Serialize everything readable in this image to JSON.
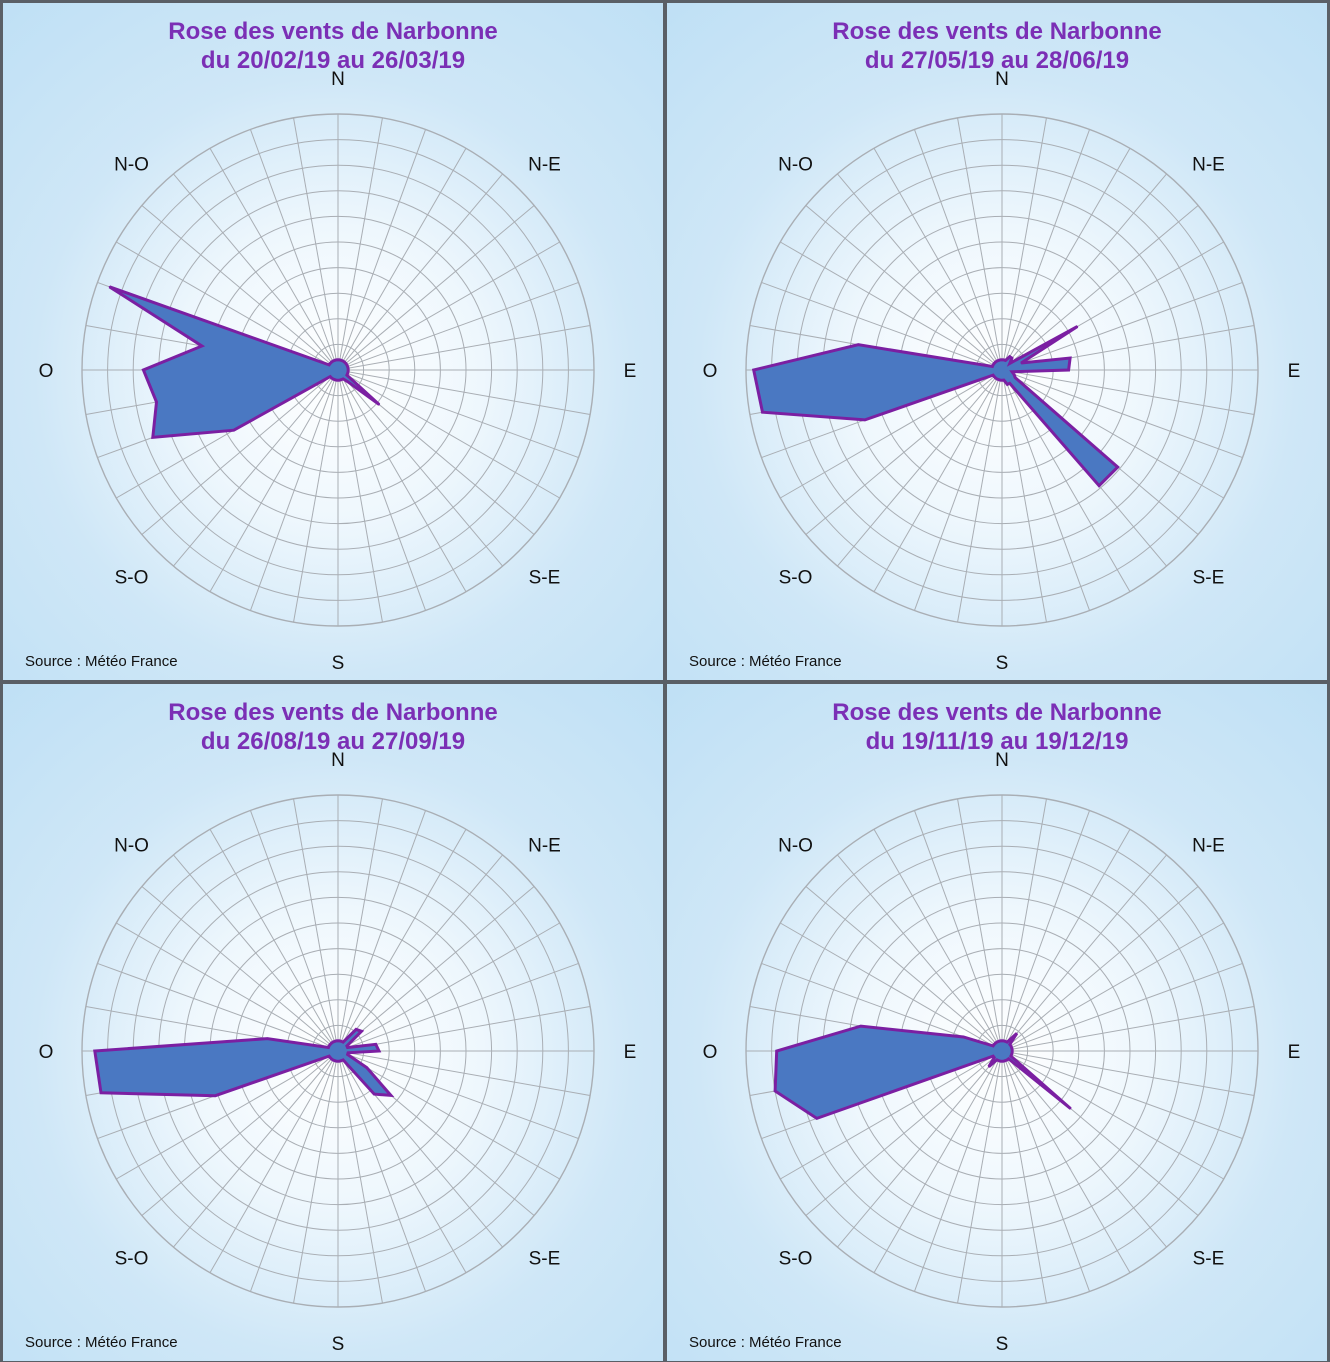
{
  "directions": [
    "N",
    "N-E",
    "E",
    "S-E",
    "S",
    "S-O",
    "O",
    "N-O"
  ],
  "colors": {
    "fill": "#4a78c2",
    "stroke": "#7b1fa2",
    "title": "#7b2fb5",
    "grid": "#a9aeb4"
  },
  "chart_data": [
    {
      "type": "radar",
      "title": "Rose des vents de Narbonne",
      "subtitle": "du 20/02/19 au 26/03/19",
      "source": "Source : Météo France",
      "sectors": 36,
      "rings": 10,
      "grid": true,
      "r_max": 10,
      "values": [
        0.4,
        0.4,
        0.4,
        0.4,
        0.4,
        0.4,
        0.4,
        0.4,
        0.4,
        0.4,
        0.4,
        0.4,
        0.4,
        2.1,
        0.6,
        0.4,
        0.4,
        0.4,
        0.4,
        0.4,
        0.4,
        0.4,
        0.4,
        0.4,
        4.7,
        7.7,
        7.2,
        7.6,
        5.4,
        9.5,
        0.4,
        0.4,
        0.4,
        0.4,
        0.4,
        0.4
      ]
    },
    {
      "type": "radar",
      "title": "Rose des vents de Narbonne",
      "subtitle": "du 27/05/19 au 28/06/19",
      "source": "Source : Météo France",
      "sectors": 36,
      "rings": 10,
      "grid": true,
      "r_max": 10,
      "values": [
        0.4,
        0.4,
        0.4,
        0.6,
        0.6,
        0.4,
        3.4,
        0.8,
        2.7,
        2.6,
        0.4,
        0.5,
        0.6,
        5.9,
        5.9,
        0.6,
        0.6,
        0.4,
        0.4,
        0.4,
        0.4,
        0.4,
        0.4,
        0.4,
        0.4,
        5.7,
        9.5,
        9.7,
        5.7,
        0.4,
        0.4,
        0.4,
        0.4,
        0.4,
        0.4,
        0.4
      ]
    },
    {
      "type": "radar",
      "title": "Rose des vents de Narbonne",
      "subtitle": "du 26/08/19 au 27/09/19",
      "source": "Source : Météo France",
      "sectors": 36,
      "rings": 10,
      "grid": true,
      "r_max": 10,
      "values": [
        0.4,
        0.4,
        0.4,
        0.4,
        1.1,
        1.2,
        0.4,
        0.4,
        1.5,
        1.6,
        0.4,
        0.4,
        1.3,
        2.7,
        2.2,
        0.4,
        0.4,
        0.4,
        0.4,
        0.4,
        0.4,
        0.4,
        0.4,
        0.4,
        0.4,
        5.1,
        9.4,
        9.5,
        2.8,
        0.4,
        0.4,
        0.4,
        0.4,
        0.4,
        0.4,
        0.4
      ]
    },
    {
      "type": "radar",
      "title": "Rose des vents de Narbonne",
      "subtitle": "du 19/11/19 au 19/12/19",
      "source": "Source : Météo France",
      "sectors": 36,
      "rings": 10,
      "grid": true,
      "r_max": 10,
      "values": [
        0.4,
        0.4,
        0.4,
        0.4,
        0.9,
        0.4,
        0.4,
        0.4,
        0.4,
        0.4,
        0.4,
        0.4,
        0.4,
        3.5,
        0.4,
        0.4,
        0.4,
        0.4,
        0.4,
        0.4,
        0.4,
        0.4,
        0.8,
        0.4,
        0.4,
        7.7,
        9.0,
        8.8,
        5.6,
        1.6,
        0.4,
        0.4,
        0.4,
        0.4,
        0.4,
        0.4
      ]
    }
  ]
}
